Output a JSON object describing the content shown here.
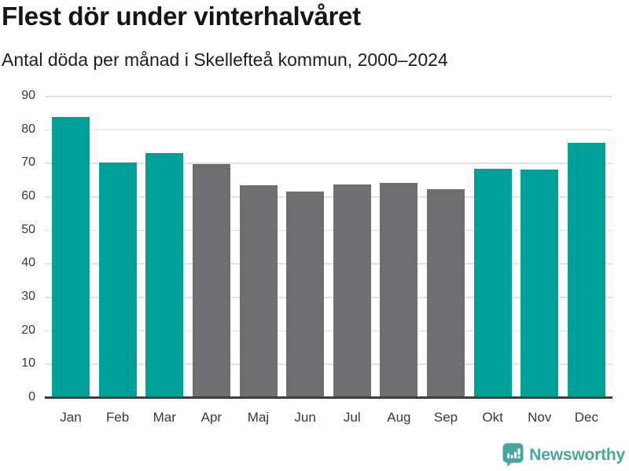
{
  "chart_data": {
    "type": "bar",
    "title": "Flest dör under vinterhalvåret",
    "subtitle": "Antal döda per månad i Skellefteå kommun, 2000–2024",
    "categories": [
      "Jan",
      "Feb",
      "Mar",
      "Apr",
      "Maj",
      "Jun",
      "Jul",
      "Aug",
      "Sep",
      "Okt",
      "Nov",
      "Dec"
    ],
    "values": [
      83.6,
      70.0,
      72.8,
      69.5,
      63.4,
      61.3,
      63.5,
      63.9,
      62.2,
      68.1,
      67.9,
      75.9
    ],
    "bar_colors": [
      "teal",
      "teal",
      "teal",
      "gray",
      "gray",
      "gray",
      "gray",
      "gray",
      "gray",
      "teal",
      "teal",
      "teal"
    ],
    "palette": {
      "teal": "#00a09a",
      "gray": "#6e6e71"
    },
    "ylim": [
      0,
      90
    ],
    "yticks": [
      0,
      10,
      20,
      30,
      40,
      50,
      60,
      70,
      80,
      90
    ],
    "xlabel": "",
    "ylabel": "",
    "grid": "horizontal",
    "legend": "none"
  },
  "footer": {
    "brand": "Newsworthy",
    "brand_color": "#4aa5a0",
    "logo_icon": "speech-bubble-bar-chart-icon"
  }
}
